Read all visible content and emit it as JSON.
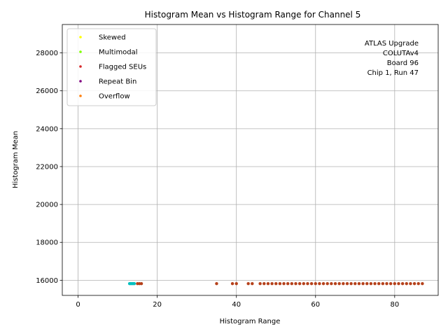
{
  "chart_data": {
    "type": "scatter",
    "title": "Histogram Mean vs Histogram Range for Channel 5",
    "xlabel": "Histogram Range",
    "ylabel": "Histogram Mean",
    "xlim": [
      -4,
      91
    ],
    "ylim": [
      15200,
      29500
    ],
    "xticks": [
      0,
      20,
      40,
      60,
      80
    ],
    "yticks": [
      16000,
      18000,
      20000,
      22000,
      24000,
      26000,
      28000
    ],
    "grid": true,
    "legend_position": "top-left",
    "annotation": [
      "ATLAS Upgrade",
      "COLUTAv4",
      "Board 96",
      "Chip 1, Run 47"
    ],
    "legend": [
      {
        "name": "Skewed",
        "color": "#ffff00"
      },
      {
        "name": "Multimodal",
        "color": "#7fff00"
      },
      {
        "name": "Flagged SEUs",
        "color": "#d62728"
      },
      {
        "name": "Repeat Bin",
        "color": "#800080"
      },
      {
        "name": "Overflow",
        "color": "#ff7f0e"
      }
    ],
    "series": [
      {
        "color": "#00bfbf",
        "x": [
          13.0,
          13.3,
          13.6,
          13.9,
          14.2
        ],
        "y": [
          15820,
          15820,
          15820,
          15820,
          15820
        ]
      },
      {
        "color": "#b5401a",
        "x": [
          15,
          15.5,
          16,
          35,
          39,
          40,
          43,
          44,
          46,
          47,
          48,
          49,
          50,
          51,
          52,
          53,
          54,
          55,
          56,
          57,
          58,
          59,
          60,
          61,
          62,
          63,
          64,
          65,
          66,
          67,
          68,
          69,
          70,
          71,
          72,
          73,
          74,
          75,
          76,
          77,
          78,
          79,
          80,
          81,
          82,
          83,
          84,
          85,
          86,
          87
        ],
        "y": [
          15820,
          15820,
          15820,
          15820,
          15820,
          15820,
          15820,
          15820,
          15820,
          15820,
          15820,
          15820,
          15820,
          15820,
          15820,
          15820,
          15820,
          15820,
          15820,
          15820,
          15820,
          15820,
          15820,
          15820,
          15820,
          15820,
          15820,
          15820,
          15820,
          15820,
          15820,
          15820,
          15820,
          15820,
          15820,
          15820,
          15820,
          15820,
          15820,
          15820,
          15820,
          15820,
          15820,
          15820,
          15820,
          15820,
          15820,
          15820,
          15820,
          15820
        ]
      }
    ]
  }
}
